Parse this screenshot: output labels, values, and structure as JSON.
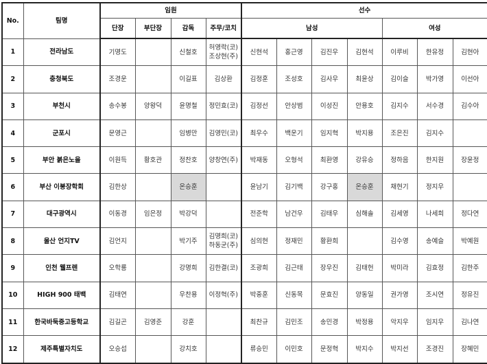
{
  "headers": {
    "no": "No.",
    "team": "팀명",
    "staff": "임원",
    "players": "선수",
    "staff_cols": [
      "단장",
      "부단장",
      "감독",
      "주무/코치"
    ],
    "male": "남성",
    "female": "여성"
  },
  "highlight_color": "#d9d9d9",
  "rows": [
    {
      "no": "1",
      "team": "전라남도",
      "staff": [
        "기명도",
        "",
        "신철호",
        "허영락(코)\n조상현(주)"
      ],
      "male": [
        "신현석",
        "홍근영",
        "김진우",
        "김현석"
      ],
      "female": [
        "이루비",
        "한유정",
        "김현아"
      ]
    },
    {
      "no": "2",
      "team": "충청북도",
      "staff": [
        "조경운",
        "",
        "이길표",
        "김상환"
      ],
      "male": [
        "김정훈",
        "조성호",
        "김사우",
        "최윤상"
      ],
      "female": [
        "김이슬",
        "박가영",
        "이선아"
      ]
    },
    {
      "no": "3",
      "team": "부천시",
      "staff": [
        "송수봉",
        "양왕덕",
        "윤명철",
        "정민효(코)"
      ],
      "male": [
        "김정선",
        "안상범",
        "이성진",
        "안용호"
      ],
      "female": [
        "김지수",
        "서수경",
        "김수아"
      ]
    },
    {
      "no": "4",
      "team": "군포시",
      "staff": [
        "문영근",
        "",
        "임병만",
        "김영민(코)"
      ],
      "male": [
        "최우수",
        "백운기",
        "임지혁",
        "박지용"
      ],
      "female": [
        "조은진",
        "김지수",
        ""
      ]
    },
    {
      "no": "5",
      "team": "부안 붉은노을",
      "staff": [
        "이원득",
        "황호관",
        "정찬호",
        "양창연(주)"
      ],
      "male": [
        "박재동",
        "오형석",
        "최환영",
        "강유승"
      ],
      "female": [
        "정하음",
        "한지원",
        "장윤정"
      ]
    },
    {
      "no": "6",
      "team": "부산 이붕장학회",
      "staff": [
        "김한상",
        "",
        "온승훈",
        ""
      ],
      "male": [
        "윤남기",
        "김기백",
        "강구홍",
        "온승훈"
      ],
      "female": [
        "채현기",
        "정지우",
        ""
      ],
      "highlight": true
    },
    {
      "no": "7",
      "team": "대구광역시",
      "staff": [
        "이동경",
        "임은정",
        "박강덕",
        ""
      ],
      "male": [
        "전준학",
        "남건우",
        "김태우",
        "심해솔"
      ],
      "female": [
        "김세영",
        "나세희",
        "정다연"
      ]
    },
    {
      "no": "8",
      "team": "울산 언지TV",
      "staff": [
        "김언지",
        "",
        "박기주",
        "김명희(코)\n하동균(주)"
      ],
      "male": [
        "심의현",
        "정재민",
        "황환희",
        ""
      ],
      "female": [
        "김수영",
        "송예슬",
        "박예원"
      ]
    },
    {
      "no": "9",
      "team": "인천 웰프렌",
      "staff": [
        "오학룡",
        "",
        "강명희",
        "김한결(코)"
      ],
      "male": [
        "조광희",
        "김근태",
        "장우진",
        "김태헌"
      ],
      "female": [
        "박미라",
        "김효정",
        "김한주"
      ]
    },
    {
      "no": "10",
      "team": "HIGH 900 태백",
      "staff": [
        "김태연",
        "",
        "우찬용",
        "이정혁(주)"
      ],
      "male": [
        "박중훈",
        "신동목",
        "문효진",
        "양동일"
      ],
      "female": [
        "권가영",
        "조시연",
        "정유진"
      ]
    },
    {
      "no": "11",
      "team": "한국바둑중고등학교",
      "staff": [
        "김길곤",
        "김영준",
        "강훈",
        ""
      ],
      "male": [
        "최찬규",
        "김민조",
        "송민경",
        "박정용"
      ],
      "female": [
        "악지우",
        "임지우",
        "김나연"
      ]
    },
    {
      "no": "12",
      "team": "제주특별자치도",
      "staff": [
        "오승섭",
        "",
        "강치호",
        ""
      ],
      "male": [
        "류승민",
        "이민호",
        "문정혁",
        "박지수"
      ],
      "female": [
        "박지선",
        "조경진",
        "장혜민"
      ]
    }
  ]
}
